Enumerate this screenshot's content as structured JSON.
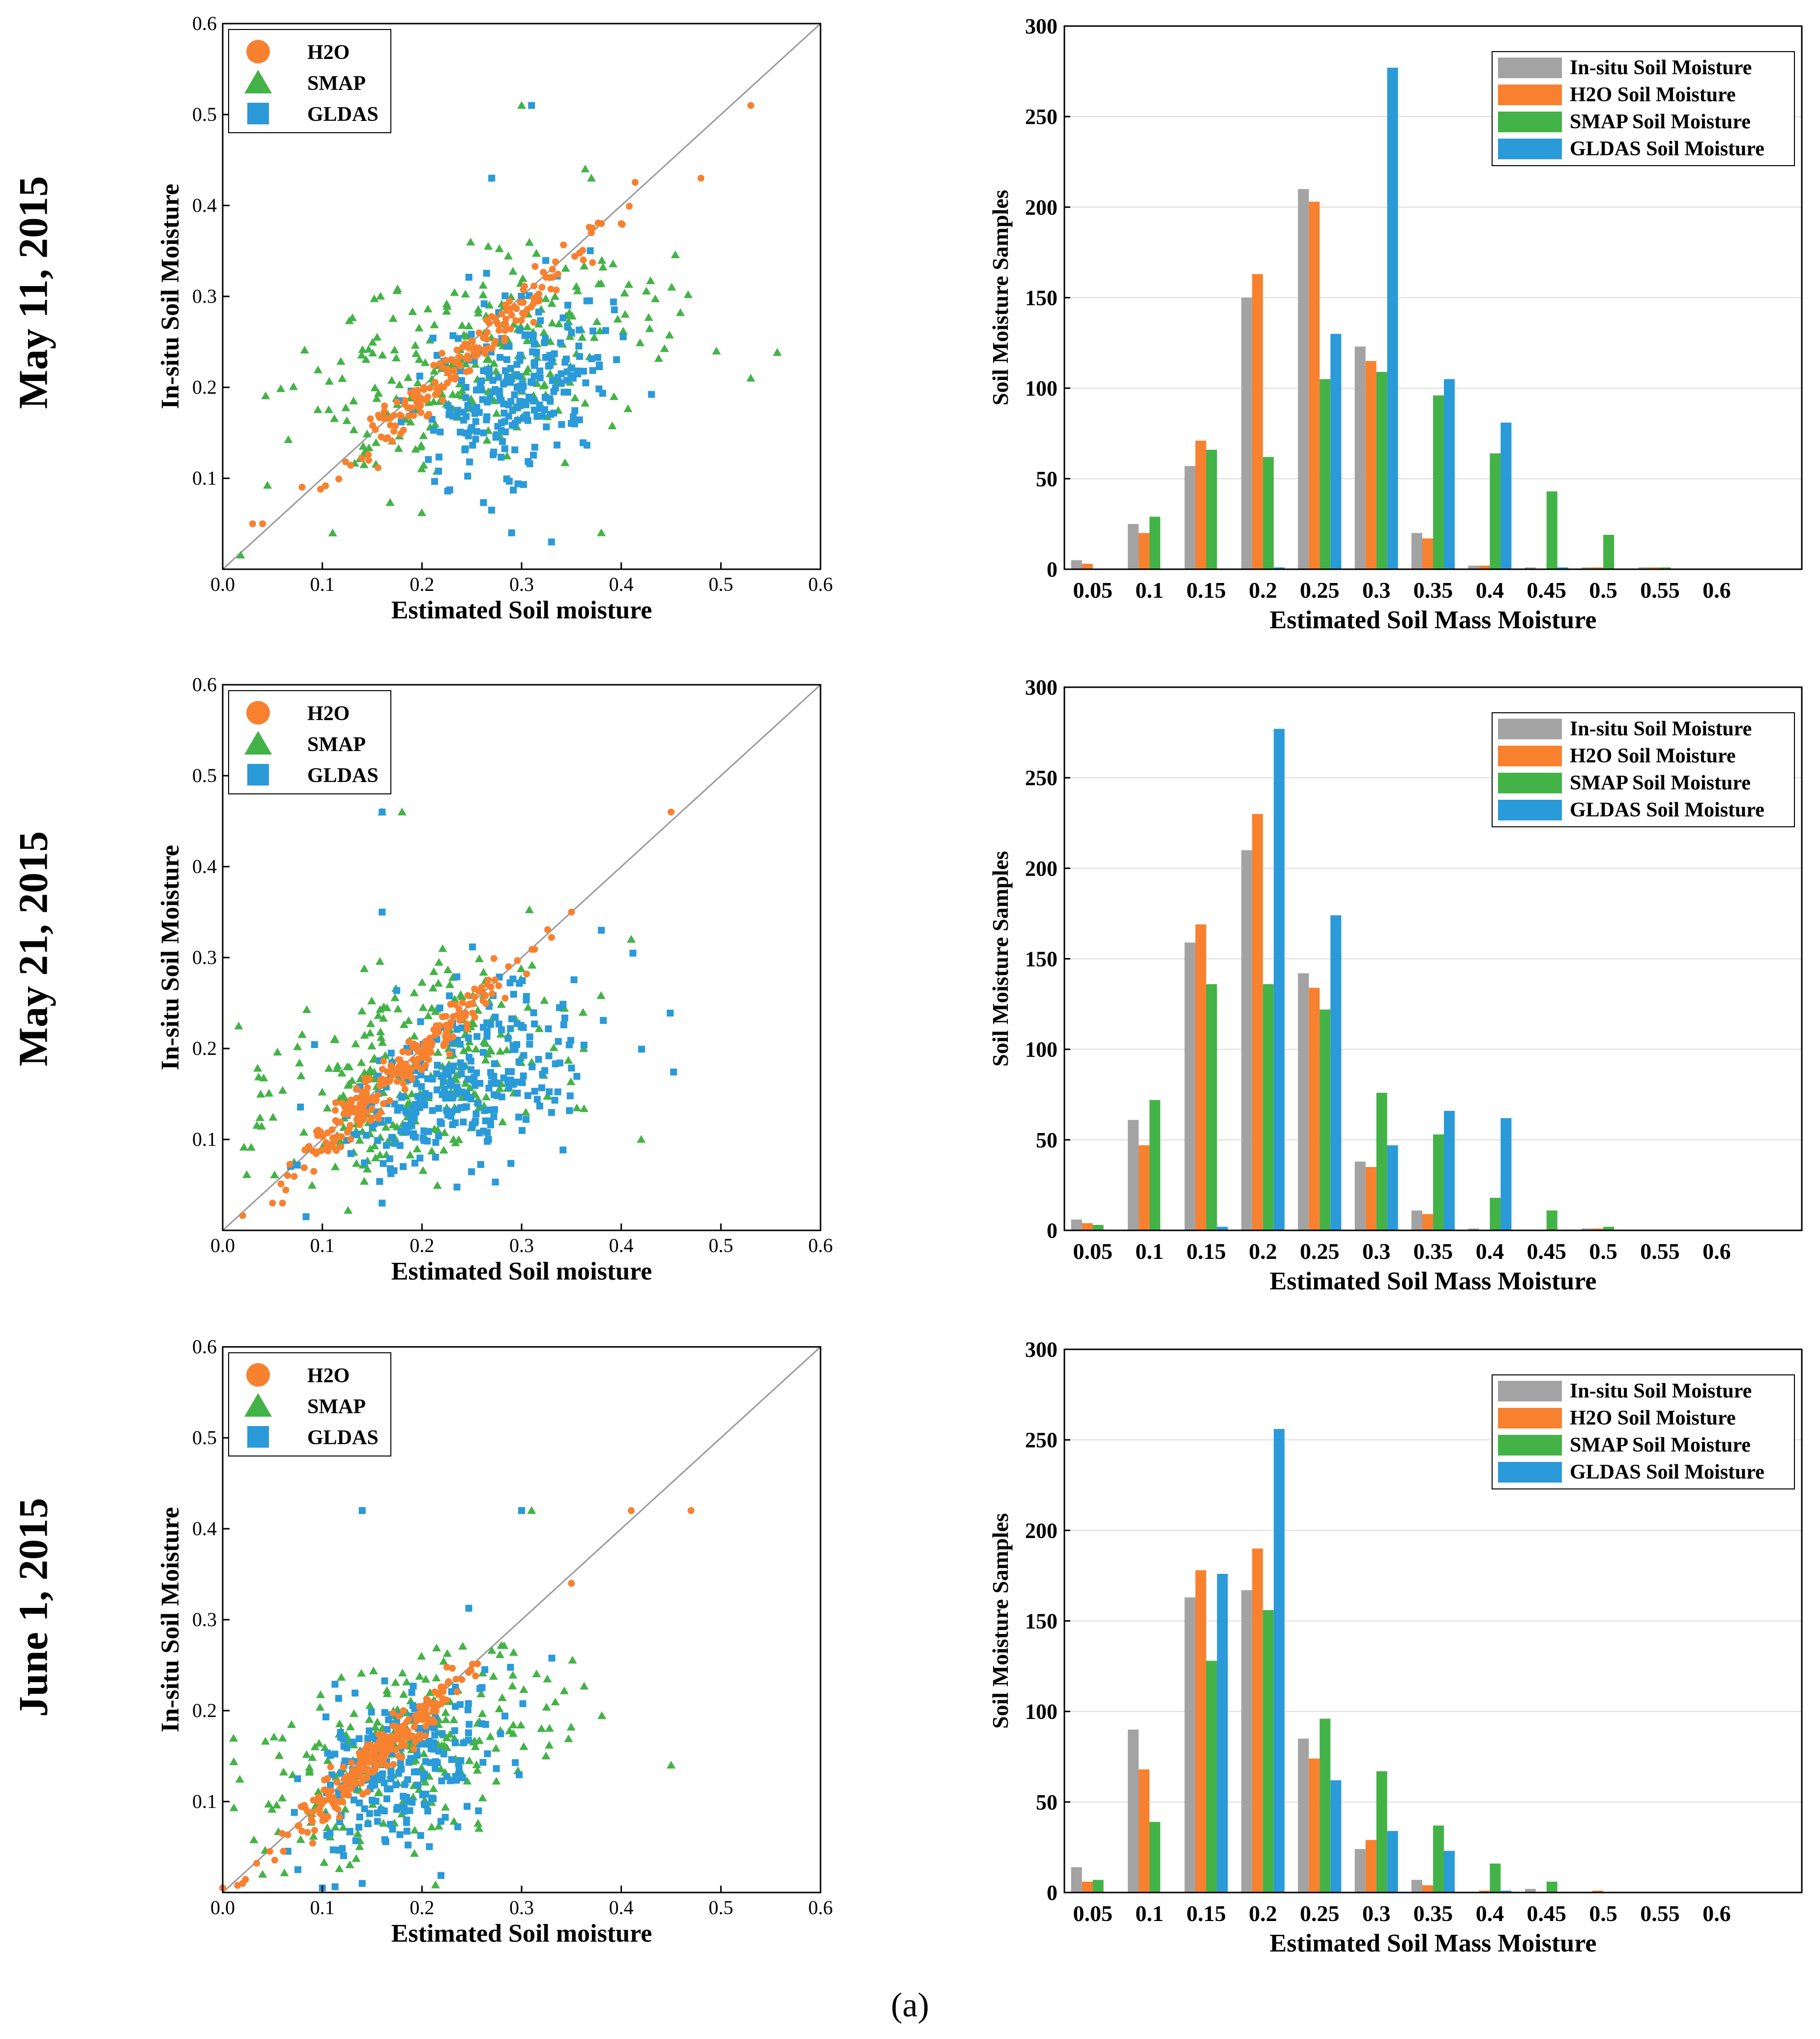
{
  "caption": "(a)",
  "row_labels": [
    "May 11,   2015",
    "May 21,   2015",
    "June 1,   2015"
  ],
  "colors": {
    "insitu": "#a3a3a3",
    "h2o": "#f7812f",
    "smap": "#43b347",
    "gldas": "#2a9ad8",
    "identity_line": "#9a9a9a",
    "grid": "#dcdcdc"
  },
  "chart_data": [
    {
      "panel": "scatter-may11",
      "type": "scatter",
      "xlabel": "Estimated Soil moisture",
      "ylabel": "In-situ Soil Moisture",
      "xlim": [
        0,
        0.6
      ],
      "ylim": [
        0,
        0.6
      ],
      "xticks": [
        "0.0",
        "0.1",
        "0.2",
        "0.3",
        "0.4",
        "0.5",
        "0.6"
      ],
      "yticks": [
        "0.1",
        "0.2",
        "0.3",
        "0.4",
        "0.5",
        "0.6"
      ],
      "legend": [
        "H2O",
        "SMAP",
        "GLDAS"
      ],
      "legend_position": "top-left",
      "identity_line": true,
      "series": [
        {
          "name": "H2O",
          "marker": "circle",
          "center": [
            0.24,
            0.23
          ],
          "spread_x": 0.06,
          "spread_y": 0.003,
          "n": 180,
          "seed": 11,
          "extra": [
            [
              0.53,
              0.51
            ],
            [
              0.48,
              0.43
            ],
            [
              0.4,
              0.38
            ],
            [
              0.37,
              0.37
            ],
            [
              0.03,
              0.05
            ],
            [
              0.04,
              0.05
            ]
          ]
        },
        {
          "name": "SMAP",
          "marker": "triangle",
          "center": [
            0.25,
            0.22
          ],
          "spread_x": 0.09,
          "spread_y": 0.055,
          "n": 280,
          "seed": 23,
          "extra": [
            [
              0.3,
              0.51
            ],
            [
              0.37,
              0.43
            ],
            [
              0.53,
              0.21
            ],
            [
              0.38,
              0.04
            ]
          ]
        },
        {
          "name": "GLDAS",
          "marker": "square",
          "center": [
            0.3,
            0.2
          ],
          "spread_x": 0.045,
          "spread_y": 0.045,
          "n": 260,
          "seed": 37,
          "extra": [
            [
              0.31,
              0.51
            ],
            [
              0.27,
              0.43
            ],
            [
              0.33,
              0.03
            ],
            [
              0.29,
              0.04
            ]
          ]
        }
      ]
    },
    {
      "panel": "bar-may11",
      "type": "bar",
      "xlabel": "Estimated Soil Mass Moisture",
      "ylabel": "Soil Moisture Samples",
      "ylim": [
        0,
        300
      ],
      "yticks": [
        "0",
        "50",
        "100",
        "150",
        "200",
        "250",
        "300"
      ],
      "categories": [
        "0.05",
        "0.1",
        "0.15",
        "0.2",
        "0.25",
        "0.3",
        "0.35",
        "0.4",
        "0.45",
        "0.5",
        "0.55",
        "0.6"
      ],
      "legend_position": "top-right",
      "series": [
        {
          "name": "In-situ Soil Moisture",
          "values": [
            5,
            25,
            57,
            150,
            210,
            123,
            20,
            2,
            1,
            1,
            1,
            0
          ]
        },
        {
          "name": "H2O Soil Moisture",
          "values": [
            3,
            20,
            71,
            163,
            203,
            115,
            17,
            2,
            0,
            1,
            1,
            0
          ]
        },
        {
          "name": "SMAP Soil Moisture",
          "values": [
            0,
            29,
            66,
            62,
            105,
            109,
            96,
            64,
            43,
            19,
            1,
            0
          ]
        },
        {
          "name": "GLDAS Soil Moisture",
          "values": [
            0,
            0,
            0,
            1,
            130,
            277,
            105,
            81,
            1,
            0,
            0,
            0
          ]
        }
      ]
    },
    {
      "panel": "scatter-may21",
      "type": "scatter",
      "xlabel": "Estimated Soil moisture",
      "ylabel": "In-situ Soil Moisture",
      "xlim": [
        0,
        0.6
      ],
      "ylim": [
        0,
        0.6
      ],
      "xticks": [
        "0.0",
        "0.1",
        "0.2",
        "0.3",
        "0.4",
        "0.5",
        "0.6"
      ],
      "yticks": [
        "0.1",
        "0.2",
        "0.3",
        "0.4",
        "0.5",
        "0.6"
      ],
      "legend": [
        "H2O",
        "SMAP",
        "GLDAS"
      ],
      "legend_position": "top-left",
      "identity_line": true,
      "series": [
        {
          "name": "H2O",
          "marker": "circle",
          "center": [
            0.17,
            0.165
          ],
          "spread_x": 0.055,
          "spread_y": 0.012,
          "n": 260,
          "seed": 51,
          "extra": [
            [
              0.45,
              0.46
            ],
            [
              0.35,
              0.35
            ],
            [
              0.05,
              0.03
            ],
            [
              0.06,
              0.03
            ]
          ]
        },
        {
          "name": "SMAP",
          "marker": "triangle",
          "center": [
            0.2,
            0.17
          ],
          "spread_x": 0.075,
          "spread_y": 0.055,
          "n": 300,
          "seed": 63,
          "extra": [
            [
              0.18,
              0.46
            ],
            [
              0.16,
              0.46
            ],
            [
              0.41,
              0.32
            ],
            [
              0.42,
              0.1
            ]
          ]
        },
        {
          "name": "GLDAS",
          "marker": "square",
          "center": [
            0.24,
            0.16
          ],
          "spread_x": 0.06,
          "spread_y": 0.05,
          "n": 300,
          "seed": 77,
          "extra": [
            [
              0.16,
              0.46
            ],
            [
              0.16,
              0.35
            ],
            [
              0.38,
              0.33
            ],
            [
              0.16,
              0.03
            ]
          ]
        }
      ]
    },
    {
      "panel": "bar-may21",
      "type": "bar",
      "xlabel": "Estimated Soil Mass Moisture",
      "ylabel": "Soil Moisture Samples",
      "ylim": [
        0,
        300
      ],
      "yticks": [
        "0",
        "50",
        "100",
        "150",
        "200",
        "250",
        "300"
      ],
      "categories": [
        "0.05",
        "0.1",
        "0.15",
        "0.2",
        "0.25",
        "0.3",
        "0.35",
        "0.4",
        "0.45",
        "0.5",
        "0.55",
        "0.6"
      ],
      "legend_position": "top-right",
      "series": [
        {
          "name": "In-situ Soil Moisture",
          "values": [
            6,
            61,
            159,
            210,
            142,
            38,
            11,
            1,
            0,
            1,
            0,
            0
          ]
        },
        {
          "name": "H2O Soil Moisture",
          "values": [
            4,
            47,
            169,
            230,
            134,
            35,
            9,
            0,
            0,
            1,
            0,
            0
          ]
        },
        {
          "name": "SMAP Soil Moisture",
          "values": [
            3,
            72,
            136,
            136,
            122,
            76,
            53,
            18,
            11,
            2,
            0,
            0
          ]
        },
        {
          "name": "GLDAS Soil Moisture",
          "values": [
            0,
            0,
            2,
            277,
            174,
            47,
            66,
            62,
            0,
            0,
            0,
            0
          ]
        }
      ]
    },
    {
      "panel": "scatter-june1",
      "type": "scatter",
      "xlabel": "Estimated Soil moisture",
      "ylabel": "In-situ Soil Moisture",
      "xlim": [
        0,
        0.6
      ],
      "ylim": [
        0,
        0.6
      ],
      "xticks": [
        "0.0",
        "0.1",
        "0.2",
        "0.3",
        "0.4",
        "0.5",
        "0.6"
      ],
      "yticks": [
        "0.1",
        "0.2",
        "0.3",
        "0.4",
        "0.5",
        "0.6"
      ],
      "legend": [
        "H2O",
        "SMAP",
        "GLDAS"
      ],
      "legend_position": "top-left",
      "identity_line": true,
      "series": [
        {
          "name": "H2O",
          "marker": "circle",
          "center": [
            0.155,
            0.15
          ],
          "spread_x": 0.05,
          "spread_y": 0.01,
          "n": 260,
          "seed": 91,
          "extra": [
            [
              0.47,
              0.42
            ],
            [
              0.41,
              0.42
            ],
            [
              0.35,
              0.34
            ],
            [
              0.0,
              0.005
            ],
            [
              0.02,
              0.01
            ]
          ]
        },
        {
          "name": "SMAP",
          "marker": "triangle",
          "center": [
            0.18,
            0.15
          ],
          "spread_x": 0.075,
          "spread_y": 0.05,
          "n": 260,
          "seed": 103,
          "extra": [
            [
              0.31,
              0.42
            ],
            [
              0.45,
              0.14
            ],
            [
              0.04,
              0.02
            ]
          ]
        },
        {
          "name": "GLDAS",
          "marker": "square",
          "center": [
            0.18,
            0.14
          ],
          "spread_x": 0.05,
          "spread_y": 0.045,
          "n": 240,
          "seed": 117,
          "extra": [
            [
              0.14,
              0.42
            ],
            [
              0.3,
              0.42
            ],
            [
              0.1,
              0.005
            ],
            [
              0.14,
              0.01
            ]
          ]
        }
      ]
    },
    {
      "panel": "bar-june1",
      "type": "bar",
      "xlabel": "Estimated Soil Mass Moisture",
      "ylabel": "Soil Moisture Samples",
      "ylim": [
        0,
        300
      ],
      "yticks": [
        "0",
        "50",
        "100",
        "150",
        "200",
        "250",
        "300"
      ],
      "categories": [
        "0.05",
        "0.1",
        "0.15",
        "0.2",
        "0.25",
        "0.3",
        "0.35",
        "0.4",
        "0.45",
        "0.5",
        "0.55",
        "0.6"
      ],
      "legend_position": "top-right",
      "series": [
        {
          "name": "In-situ Soil Moisture",
          "values": [
            14,
            90,
            163,
            167,
            85,
            24,
            7,
            0,
            2,
            0,
            0,
            0
          ]
        },
        {
          "name": "H2O Soil Moisture",
          "values": [
            6,
            68,
            178,
            190,
            74,
            29,
            4,
            1,
            0,
            1,
            0,
            0
          ]
        },
        {
          "name": "SMAP Soil Moisture",
          "values": [
            7,
            39,
            128,
            156,
            96,
            67,
            37,
            16,
            6,
            0,
            0,
            0
          ]
        },
        {
          "name": "GLDAS Soil Moisture",
          "values": [
            0,
            0,
            176,
            256,
            62,
            34,
            23,
            1,
            0,
            0,
            0,
            0
          ]
        }
      ]
    }
  ]
}
